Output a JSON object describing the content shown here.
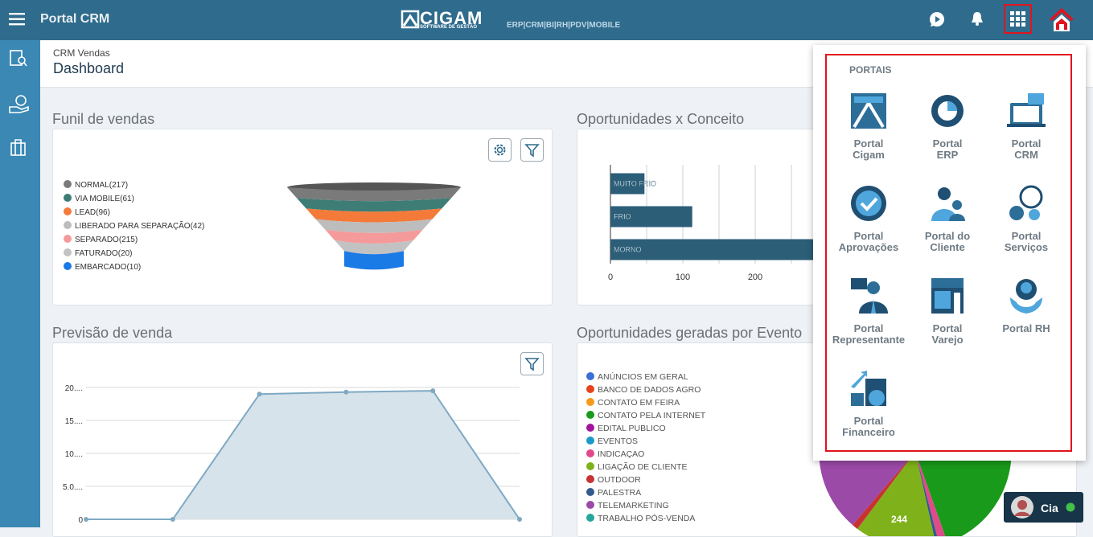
{
  "header": {
    "app_title": "Portal CRM",
    "logo": "CIGAM",
    "logo_subtitle": "SOFTWARE DE GESTÃO",
    "product_links": "ERP|CRM|BI|RH|PDV|MOBILE"
  },
  "breadcrumb": {
    "section": "CRM Vendas",
    "title": "Dashboard"
  },
  "dashboard": {
    "funnel": {
      "type": "funnel",
      "title": "Funil de vendas",
      "legend": [
        {
          "label": "NORMAL(217)",
          "color": "#7a7a7a"
        },
        {
          "label": "VIA MOBILE(61)",
          "color": "#3d7d76"
        },
        {
          "label": "LEAD(96)",
          "color": "#f47a3a"
        },
        {
          "label": "LIBERADO PARA SEPARAÇÃO(42)",
          "color": "#bdbdbd"
        },
        {
          "label": "SEPARADO(215)",
          "color": "#f59a9a"
        },
        {
          "label": "FATURADO(20)",
          "color": "#c2c2c2"
        },
        {
          "label": "EMBARCADO(10)",
          "color": "#1a7ae6"
        }
      ]
    },
    "concept": {
      "type": "bar",
      "orientation": "horizontal",
      "title": "Oportunidades x Conceito",
      "categories": [
        "MUITO FRIO",
        "FRIO",
        "MORNO"
      ],
      "values": [
        47,
        113,
        330
      ],
      "color": "#2c5e78",
      "xlim": [
        0,
        400
      ],
      "xticks": [
        0,
        100,
        200,
        300
      ],
      "xgrid": [
        50,
        100,
        150,
        200,
        250,
        300,
        350
      ],
      "grid": true
    },
    "forecast": {
      "type": "line",
      "title": "Previsão de venda",
      "categories": [
        null,
        null,
        null,
        null,
        null,
        null
      ],
      "values": [
        0,
        0,
        19.0,
        19.3,
        19.5,
        0
      ],
      "color": "#7fa9c3",
      "fill": "#d6e3ea",
      "ylim": [
        0,
        20
      ],
      "yticks": [
        0,
        {
          "value": 5,
          "label": "5.0...."
        },
        {
          "value": 10,
          "label": "10...."
        },
        {
          "value": 15,
          "label": "15...."
        },
        {
          "value": 20,
          "label": "20...."
        }
      ],
      "grid": true
    },
    "events": {
      "type": "pie",
      "title": "Oportunidades geradas por Evento",
      "slice_label": "244",
      "legend": [
        {
          "label": "ANÚNCIOS EM GERAL",
          "color": "#3b6fd8"
        },
        {
          "label": "BANCO DE DADOS AGRO",
          "color": "#e8421c"
        },
        {
          "label": "CONTATO EM FEIRA",
          "color": "#f59a1a"
        },
        {
          "label": "CONTATO PELA INTERNET",
          "color": "#1a9a1a"
        },
        {
          "label": "EDITAL PUBLICO",
          "color": "#a0159b"
        },
        {
          "label": "EVENTOS",
          "color": "#1a9ac8"
        },
        {
          "label": "INDICAÇAO",
          "color": "#e04a8a"
        },
        {
          "label": "LIGAÇÃO DE CLIENTE",
          "color": "#7fb21a"
        },
        {
          "label": "OUTDOOR",
          "color": "#c83232"
        },
        {
          "label": "PALESTRA",
          "color": "#335a8c"
        },
        {
          "label": "TELEMARKETING",
          "color": "#9b4aa8"
        },
        {
          "label": "TRABALHO PÓS-VENDA",
          "color": "#26a69a"
        }
      ]
    }
  },
  "portals": {
    "title": "PORTAIS",
    "items": [
      "Portal\nCigam",
      "Portal\nERP",
      "Portal\nCRM",
      "Portal\nAprovações",
      "Portal do\nCliente",
      "Portal\nServiços",
      "Portal\nRepresentante",
      "Portal\nVarejo",
      "Portal RH",
      "Portal\nFinanceiro"
    ]
  },
  "chat": {
    "name": "Cia"
  }
}
